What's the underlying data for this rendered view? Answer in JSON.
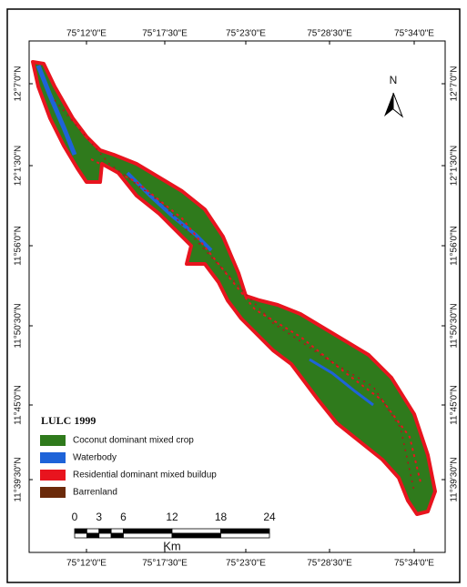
{
  "map": {
    "top_labels": [
      "75°12'0\"E",
      "75°17'30\"E",
      "75°23'0\"E",
      "75°28'30\"E",
      "75°34'0\"E"
    ],
    "bottom_labels": [
      "75°12'0\"E",
      "75°17'30\"E",
      "75°23'0\"E",
      "75°28'30\"E",
      "75°34'0\"E"
    ],
    "left_labels": [
      "12°7'0\"N",
      "12°1'30\"N",
      "11°56'0\"N",
      "11°50'30\"N",
      "11°45'0\"N",
      "11°39'30\"N"
    ],
    "right_labels": [
      "12°7'0\"N",
      "12°1'30\"N",
      "11°56'0\"N",
      "11°50'30\"N",
      "11°45'0\"N",
      "11°39'30\"N"
    ],
    "north": "N",
    "legend": {
      "title": "LULC 1999",
      "items": [
        {
          "label": "Coconut dominant mixed crop",
          "color": "#2f7a1c"
        },
        {
          "label": "Waterbody",
          "color": "#1e63d8"
        },
        {
          "label": "Residential dominant mixed buildup",
          "color": "#e8141e"
        },
        {
          "label": "Barrenland",
          "color": "#6b2a0a"
        }
      ]
    },
    "scale_bar": {
      "ticks": [
        0,
        3,
        6,
        12,
        18,
        24
      ],
      "unit": "Km"
    }
  }
}
